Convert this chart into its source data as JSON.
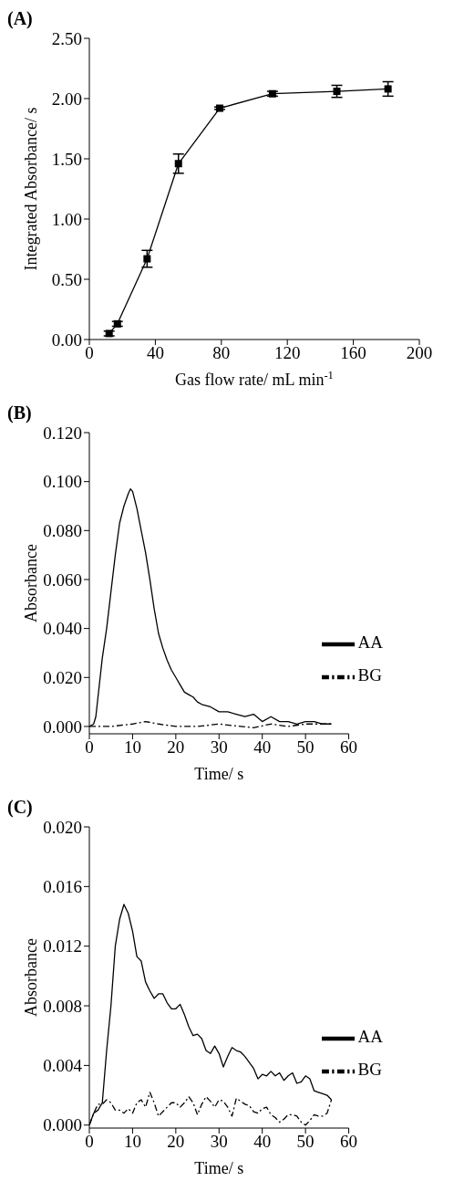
{
  "chart_data": [
    {
      "type": "line",
      "title": "(A)",
      "xlabel": "Gas flow rate/  mL min$^{-1}$",
      "ylabel": "Integrated Absorbance/ s",
      "marker": "square",
      "x": [
        12,
        17,
        35,
        54,
        79,
        111,
        150,
        181
      ],
      "values": [
        0.05,
        0.13,
        0.67,
        1.46,
        1.92,
        2.04,
        2.06,
        2.08
      ],
      "errors": [
        0.02,
        0.02,
        0.07,
        0.08,
        0.01,
        0.02,
        0.05,
        0.06
      ],
      "color": "#000000",
      "xlim": [
        0,
        200
      ],
      "xticks": [
        0,
        40,
        80,
        120,
        160,
        200
      ],
      "ylim": [
        0,
        2.5
      ],
      "yticks": [
        {
          "value": 0,
          "label": "0.00"
        },
        {
          "value": 0.5,
          "label": "0.50"
        },
        {
          "value": 1,
          "label": "1.00"
        },
        {
          "value": 1.5,
          "label": "1.50"
        },
        {
          "value": 2,
          "label": "2.00"
        },
        {
          "value": 2.5,
          "label": "2.50"
        }
      ]
    },
    {
      "type": "line",
      "title": "(B)",
      "xlabel": "Time/ s",
      "ylabel": "Absorbance",
      "legend": "right",
      "series": [
        {
          "name": "AA",
          "color": "#000000",
          "line_style": "solid",
          "x": [
            0,
            1,
            1.5,
            2,
            3,
            4,
            5,
            6,
            7,
            8,
            9,
            9.5,
            10,
            11,
            12,
            13,
            14,
            15,
            16,
            17,
            18,
            19,
            20,
            21,
            22,
            23,
            24,
            25,
            26,
            28,
            30,
            32,
            34,
            36,
            38,
            40,
            42,
            44,
            46,
            48,
            50,
            52,
            54,
            56
          ],
          "values": [
            0,
            0.001,
            0.004,
            0.012,
            0.028,
            0.04,
            0.055,
            0.07,
            0.083,
            0.09,
            0.095,
            0.097,
            0.096,
            0.089,
            0.08,
            0.071,
            0.06,
            0.048,
            0.038,
            0.032,
            0.027,
            0.023,
            0.02,
            0.017,
            0.014,
            0.013,
            0.012,
            0.01,
            0.009,
            0.008,
            0.006,
            0.006,
            0.005,
            0.004,
            0.005,
            0.002,
            0.004,
            0.002,
            0.002,
            0.001,
            0.002,
            0.002,
            0.001,
            0.001
          ]
        },
        {
          "name": "BG",
          "color": "#000000",
          "line_style": "dashed",
          "x": [
            0,
            5,
            10,
            13,
            16,
            20,
            25,
            30,
            35,
            38,
            42,
            46,
            50,
            54,
            56
          ],
          "values": [
            0,
            0,
            0.001,
            0.002,
            0.001,
            0,
            0,
            0.001,
            0,
            -0.0005,
            0.001,
            0,
            0.001,
            0.001,
            0.001
          ]
        }
      ],
      "xlim": [
        0,
        60
      ],
      "xticks": [
        0,
        10,
        20,
        30,
        40,
        50,
        60
      ],
      "ylim": [
        -0.003,
        0.12
      ],
      "yticks": [
        {
          "value": 0,
          "label": "0.000"
        },
        {
          "value": 0.02,
          "label": "0.020"
        },
        {
          "value": 0.04,
          "label": "0.040"
        },
        {
          "value": 0.06,
          "label": "0.060"
        },
        {
          "value": 0.08,
          "label": "0.080"
        },
        {
          "value": 0.1,
          "label": "0.100"
        },
        {
          "value": 0.12,
          "label": "0.120"
        }
      ]
    },
    {
      "type": "line",
      "title": "(C)",
      "xlabel": "Time/ s",
      "ylabel": "Absorbance",
      "legend": "right",
      "series": [
        {
          "name": "AA",
          "color": "#000000",
          "line_style": "solid",
          "x": [
            0,
            1,
            2,
            3,
            4,
            5,
            6,
            7,
            8,
            9,
            10,
            11,
            12,
            13,
            14,
            15,
            16,
            17,
            18,
            19,
            20,
            21,
            22,
            23,
            24,
            25,
            26,
            27,
            28,
            29,
            30,
            31,
            32,
            33,
            34,
            35,
            36,
            37,
            38,
            39,
            40,
            41,
            42,
            43,
            44,
            45,
            46,
            47,
            48,
            49,
            50,
            51,
            52,
            53,
            54,
            55,
            56
          ],
          "values": [
            0,
            0.0008,
            0.001,
            0.0015,
            0.005,
            0.008,
            0.012,
            0.0138,
            0.0148,
            0.0142,
            0.013,
            0.0113,
            0.011,
            0.0096,
            0.009,
            0.0085,
            0.0088,
            0.0088,
            0.0082,
            0.0078,
            0.0078,
            0.0081,
            0.0074,
            0.0066,
            0.006,
            0.0061,
            0.0058,
            0.005,
            0.0048,
            0.0053,
            0.0048,
            0.0039,
            0.0046,
            0.0052,
            0.005,
            0.0049,
            0.0046,
            0.0042,
            0.0038,
            0.0031,
            0.0034,
            0.0033,
            0.0036,
            0.0033,
            0.0035,
            0.003,
            0.0033,
            0.0035,
            0.0028,
            0.0029,
            0.0033,
            0.0031,
            0.0023,
            0.0022,
            0.0021,
            0.002,
            0.0017
          ]
        },
        {
          "name": "BG",
          "color": "#000000",
          "line_style": "dashed",
          "x": [
            0,
            1,
            2,
            3,
            4,
            5,
            6,
            7,
            8,
            9,
            10,
            11,
            12,
            13,
            14,
            15,
            16,
            17,
            18,
            19,
            20,
            21,
            22,
            23,
            24,
            25,
            26,
            27,
            28,
            29,
            30,
            31,
            32,
            33,
            34,
            35,
            36,
            37,
            38,
            39,
            40,
            41,
            42,
            43,
            44,
            45,
            46,
            47,
            48,
            49,
            50,
            51,
            52,
            53,
            54,
            55,
            56
          ],
          "values": [
            0,
            0.0008,
            0.0014,
            0.0014,
            0.0017,
            0.0015,
            0.001,
            0.001,
            0.0008,
            0.0011,
            0.0008,
            0.0015,
            0.0017,
            0.0012,
            0.0022,
            0.0015,
            0.0006,
            0.0009,
            0.0012,
            0.0015,
            0.0015,
            0.0012,
            0.0015,
            0.0019,
            0.0015,
            0.0007,
            0.0014,
            0.0019,
            0.0016,
            0.0012,
            0.0017,
            0.0016,
            0.0012,
            0.0006,
            0.0018,
            0.0016,
            0.0014,
            0.0013,
            0.0009,
            0.0008,
            0.0011,
            0.0012,
            0.0007,
            0.0005,
            0.0002,
            0.0004,
            0.0007,
            0.0007,
            0.0006,
            0.0002,
            0,
            0.0003,
            0.0007,
            0.0006,
            0.0006,
            0.0008,
            0.0017
          ]
        }
      ],
      "xlim": [
        0,
        60
      ],
      "xticks": [
        0,
        10,
        20,
        30,
        40,
        50,
        60
      ],
      "ylim": [
        -0.0002,
        0.02
      ],
      "yticks": [
        {
          "value": 0,
          "label": "0.000"
        },
        {
          "value": 0.004,
          "label": "0.004"
        },
        {
          "value": 0.008,
          "label": "0.008"
        },
        {
          "value": 0.012,
          "label": "0.012"
        },
        {
          "value": 0.016,
          "label": "0.016"
        },
        {
          "value": 0.02,
          "label": "0.020"
        }
      ]
    }
  ]
}
